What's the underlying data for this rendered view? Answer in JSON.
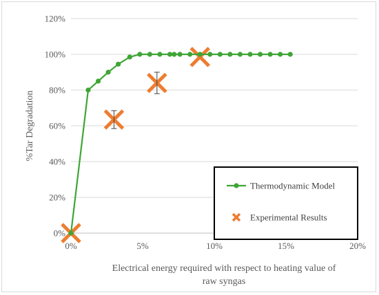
{
  "chart_data": {
    "type": "scatter",
    "title": "",
    "xlabel_lines": [
      "Electrical energy required with respect to heating value of",
      "raw syngas"
    ],
    "ylabel": "%Tar Degradation",
    "xlim": [
      0,
      20
    ],
    "ylim": [
      0,
      120
    ],
    "x_ticks": [
      0,
      5,
      10,
      15,
      20
    ],
    "y_ticks": [
      0,
      20,
      40,
      60,
      80,
      100,
      120
    ],
    "x_tick_labels": [
      "0%",
      "5%",
      "10%",
      "15%",
      "20%"
    ],
    "y_tick_labels": [
      "0%",
      "20%",
      "40%",
      "60%",
      "80%",
      "100%",
      "120%"
    ],
    "grid": "horizontal",
    "legend_position": "bottom-right",
    "series": [
      {
        "name": "Thermodynamic Model",
        "kind": "line-markers",
        "color": "#3fa535",
        "x": [
          0,
          1.2,
          1.9,
          2.6,
          3.3,
          4.1,
          4.8,
          5.5,
          6.2,
          6.9,
          7.2,
          7.6,
          8.3,
          9.0,
          9.7,
          10.4,
          11.1,
          11.8,
          12.5,
          13.2,
          13.9,
          14.6,
          15.3
        ],
        "y": [
          0,
          80,
          85,
          90,
          94.5,
          98.5,
          100,
          100,
          100,
          100,
          100,
          100,
          100,
          100,
          100,
          100,
          100,
          100,
          100,
          100,
          100,
          100,
          100
        ]
      },
      {
        "name": "Experimental Results",
        "kind": "cross-markers",
        "color": "#ed7d31",
        "x": [
          0,
          3.0,
          6.0,
          9.0
        ],
        "y": [
          0,
          63.5,
          84,
          98.5
        ],
        "error": [
          0,
          5,
          6,
          0
        ]
      }
    ]
  }
}
